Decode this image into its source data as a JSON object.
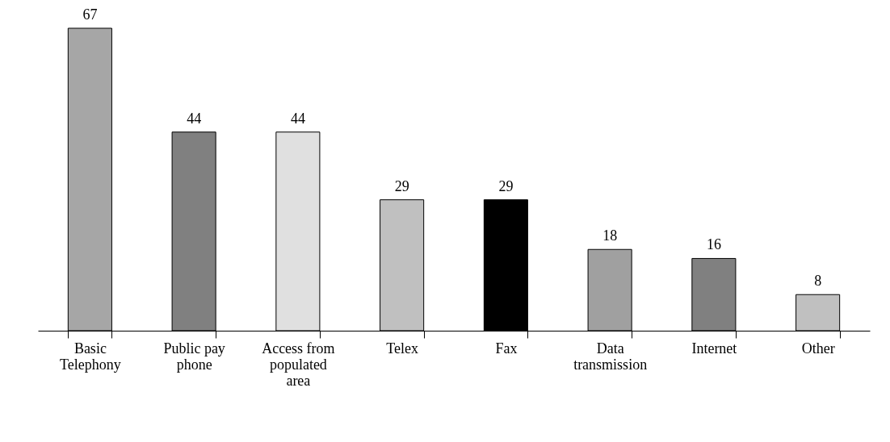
{
  "chart_data": {
    "type": "bar",
    "categories": [
      "Basic Telephony",
      "Public pay phone",
      "Access from populated area",
      "Telex",
      "Fax",
      "Data transmission",
      "Internet",
      "Other"
    ],
    "values": [
      67,
      44,
      44,
      29,
      29,
      18,
      16,
      8
    ],
    "colors": [
      "#a6a6a6",
      "#808080",
      "#e0e0e0",
      "#c0c0c0",
      "#000000",
      "#a0a0a0",
      "#808080",
      "#c0c0c0"
    ],
    "data_labels": true
  }
}
